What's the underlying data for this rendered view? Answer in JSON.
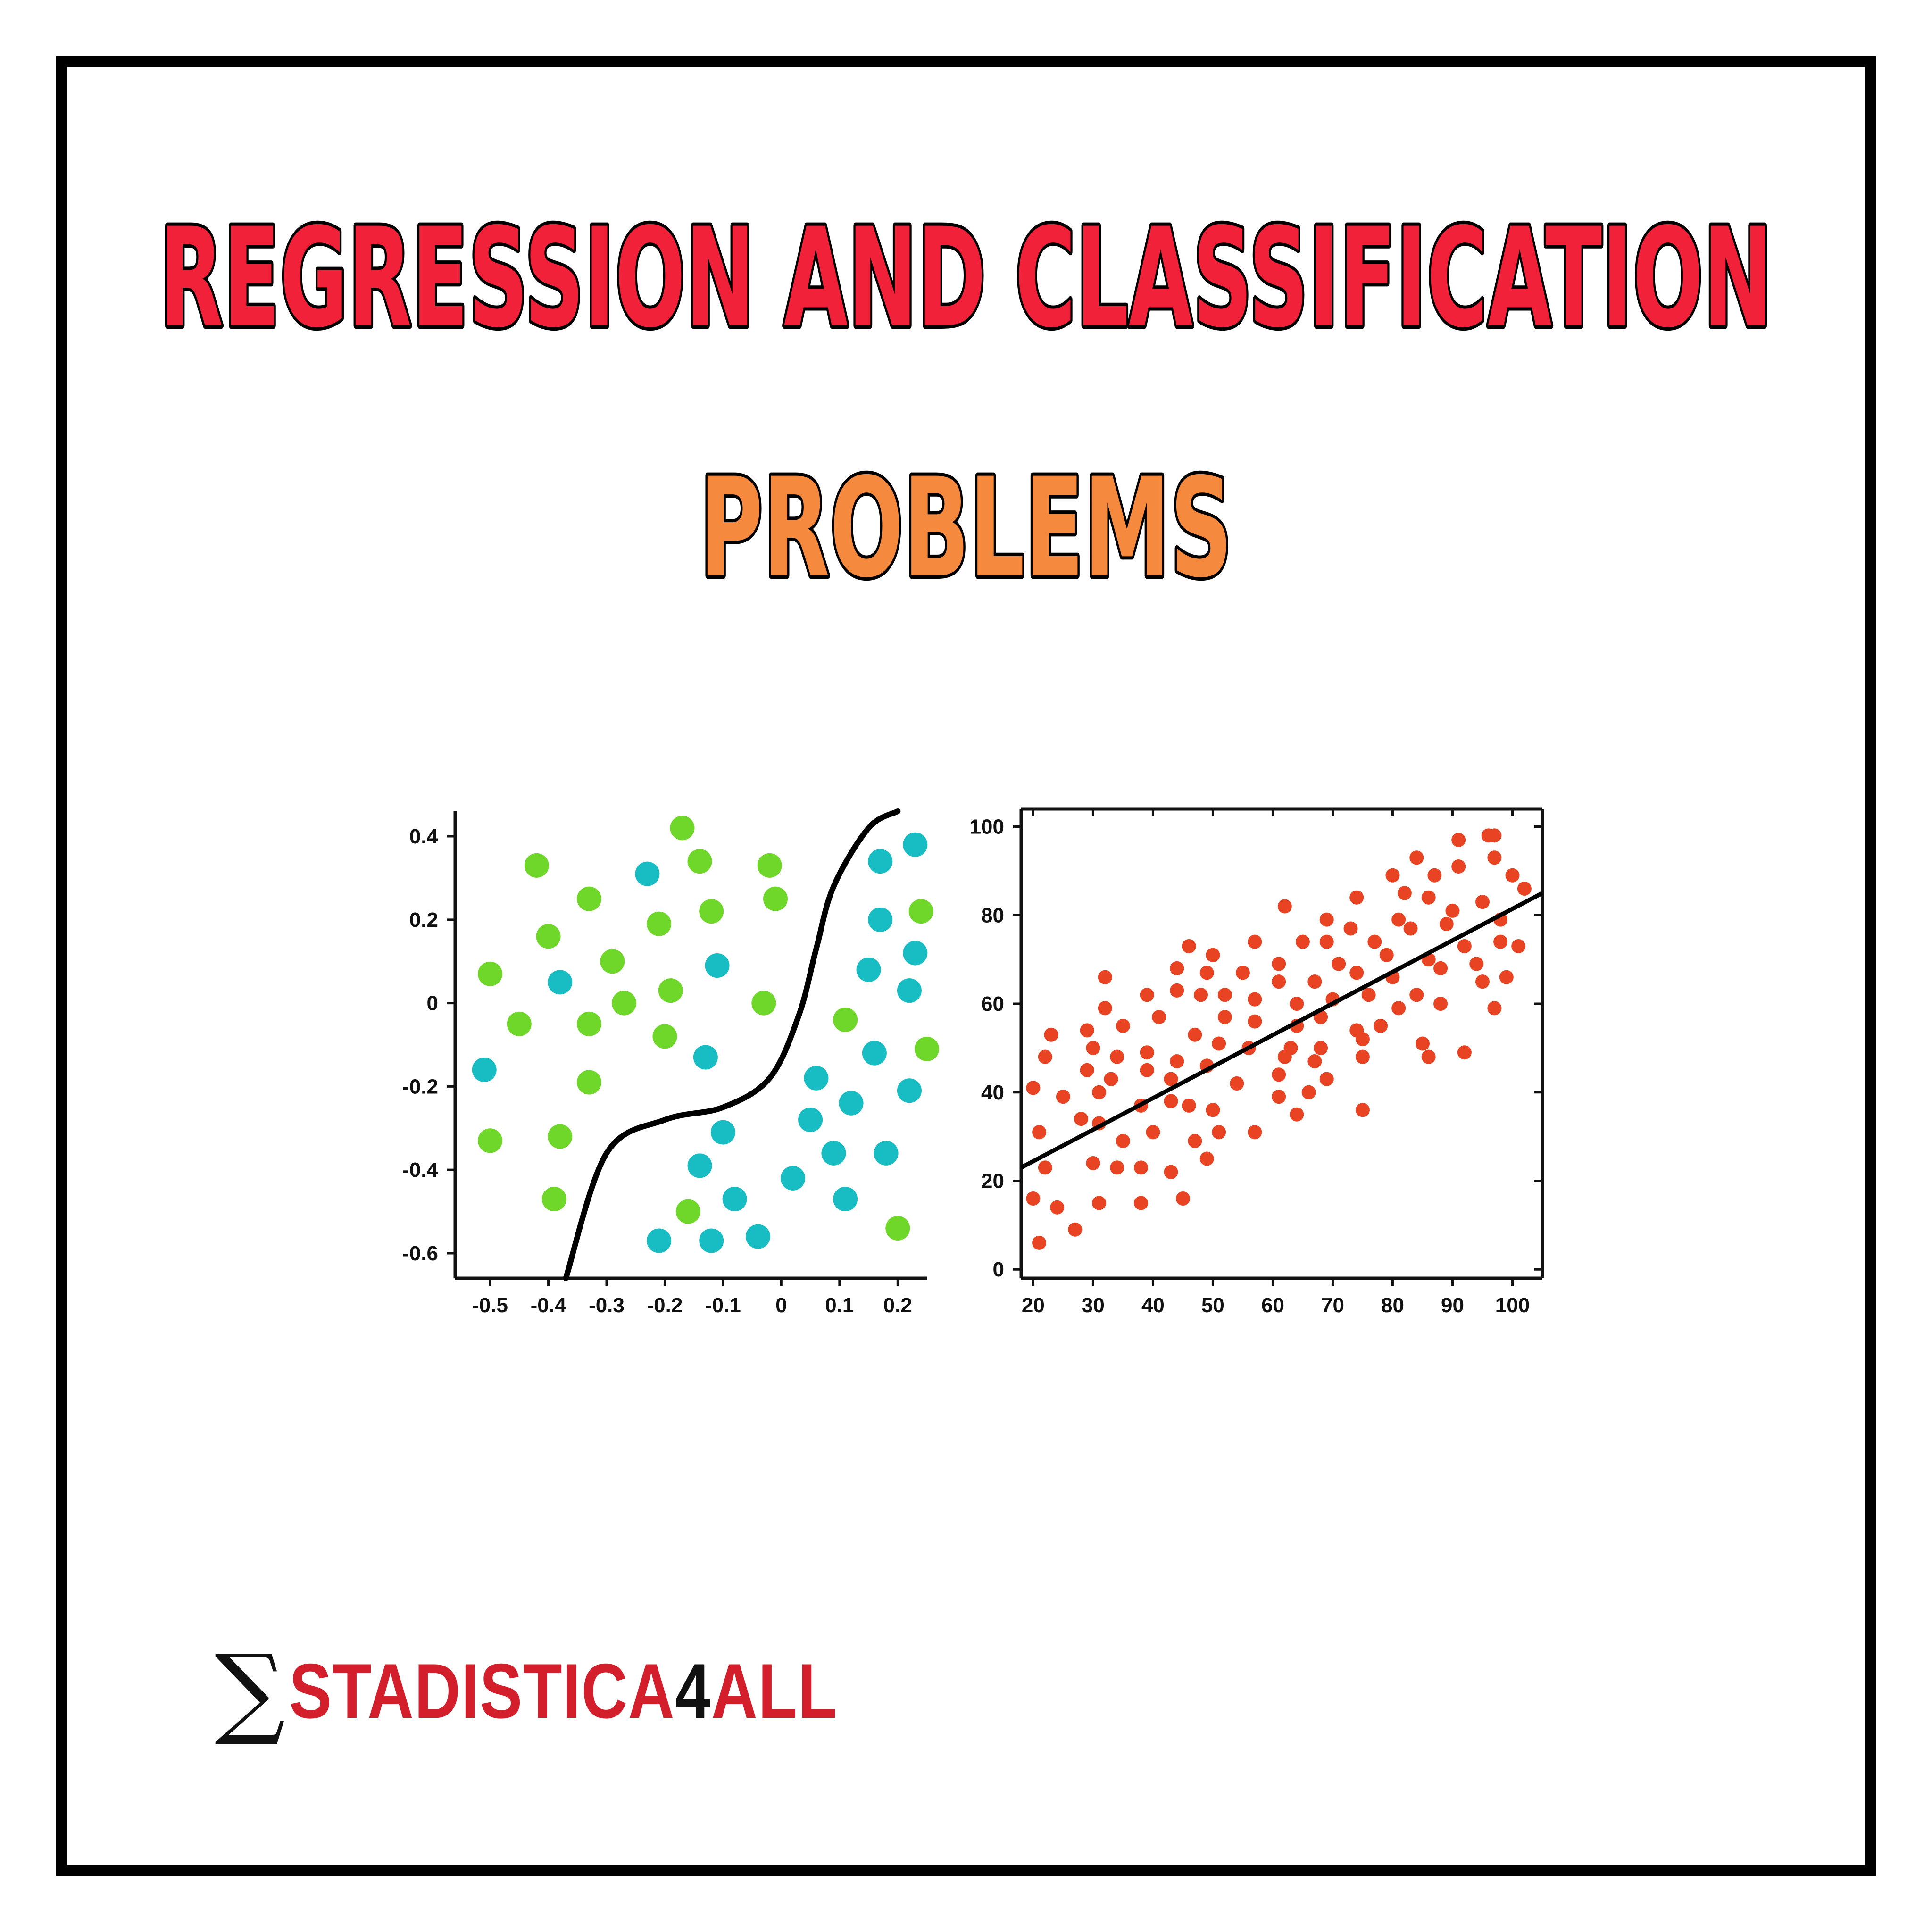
{
  "title": {
    "line1": "REGRESSION AND CLASSIFICATION",
    "line2": "PROBLEMS",
    "line1_color": "#f2213a",
    "line2_color": "#f58a3e"
  },
  "logo": {
    "symbol": "∑",
    "text_before": "STADISTICA",
    "digit": "4",
    "text_after": "ALL",
    "color": "#d21f2b"
  },
  "chart_data": [
    {
      "type": "scatter",
      "subtype": "classification",
      "title": "",
      "xlabel": "",
      "ylabel": "",
      "xlim": [
        -0.56,
        0.25
      ],
      "ylim": [
        -0.66,
        0.46
      ],
      "xticks": [
        -0.5,
        -0.4,
        -0.3,
        -0.2,
        -0.1,
        0,
        0.1,
        0.2
      ],
      "xtick_labels": [
        "-0.5",
        "-0.4",
        "-0.3",
        "-0.2",
        "-0.1",
        "0",
        "0.1",
        "0.2"
      ],
      "yticks": [
        0.4,
        0.2,
        0,
        -0.2,
        -0.4,
        -0.6
      ],
      "ytick_labels": [
        "0.4",
        "0.2",
        "0",
        "-0.2",
        "-0.4",
        "-0.6"
      ],
      "grid": false,
      "series": [
        {
          "color": "#6fd62a",
          "points": [
            [
              -0.42,
              0.33
            ],
            [
              -0.33,
              0.25
            ],
            [
              -0.4,
              0.16
            ],
            [
              -0.29,
              0.1
            ],
            [
              -0.21,
              0.19
            ],
            [
              -0.5,
              0.07
            ],
            [
              -0.45,
              -0.05
            ],
            [
              -0.33,
              -0.05
            ],
            [
              -0.27,
              0.0
            ],
            [
              -0.19,
              0.03
            ],
            [
              -0.2,
              -0.08
            ],
            [
              -0.17,
              0.42
            ],
            [
              -0.14,
              0.34
            ],
            [
              -0.02,
              0.33
            ],
            [
              -0.12,
              0.22
            ],
            [
              -0.01,
              0.25
            ],
            [
              -0.03,
              0.0
            ],
            [
              -0.33,
              -0.19
            ],
            [
              -0.38,
              -0.32
            ],
            [
              -0.5,
              -0.33
            ],
            [
              -0.39,
              -0.47
            ],
            [
              -0.16,
              -0.5
            ],
            [
              0.11,
              -0.04
            ],
            [
              0.24,
              0.22
            ],
            [
              0.25,
              -0.11
            ],
            [
              0.2,
              -0.54
            ]
          ]
        },
        {
          "color": "#17bdc3",
          "points": [
            [
              -0.23,
              0.31
            ],
            [
              -0.38,
              0.05
            ],
            [
              -0.11,
              0.09
            ],
            [
              -0.51,
              -0.16
            ],
            [
              -0.13,
              -0.13
            ],
            [
              0.17,
              0.34
            ],
            [
              0.23,
              0.38
            ],
            [
              0.17,
              0.2
            ],
            [
              0.15,
              0.08
            ],
            [
              0.23,
              0.12
            ],
            [
              0.22,
              0.03
            ],
            [
              0.16,
              -0.12
            ],
            [
              0.22,
              -0.21
            ],
            [
              0.06,
              -0.18
            ],
            [
              0.12,
              -0.24
            ],
            [
              0.05,
              -0.28
            ],
            [
              -0.1,
              -0.31
            ],
            [
              -0.14,
              -0.39
            ],
            [
              0.09,
              -0.36
            ],
            [
              0.18,
              -0.36
            ],
            [
              0.02,
              -0.42
            ],
            [
              -0.08,
              -0.47
            ],
            [
              0.11,
              -0.47
            ],
            [
              -0.21,
              -0.57
            ],
            [
              -0.12,
              -0.57
            ],
            [
              -0.04,
              -0.56
            ]
          ]
        }
      ],
      "boundary": {
        "color": "#000000",
        "points": [
          [
            -0.37,
            -0.66
          ],
          [
            -0.3,
            -0.36
          ],
          [
            -0.2,
            -0.28
          ],
          [
            -0.1,
            -0.25
          ],
          [
            -0.02,
            -0.18
          ],
          [
            0.03,
            -0.03
          ],
          [
            0.06,
            0.13
          ],
          [
            0.09,
            0.28
          ],
          [
            0.15,
            0.42
          ],
          [
            0.2,
            0.46
          ]
        ]
      }
    },
    {
      "type": "scatter",
      "subtype": "regression",
      "title": "",
      "xlabel": "",
      "ylabel": "",
      "xlim": [
        18,
        105
      ],
      "ylim": [
        -2,
        104
      ],
      "xticks": [
        20,
        30,
        40,
        50,
        60,
        70,
        80,
        90,
        100
      ],
      "xtick_labels": [
        "20",
        "30",
        "40",
        "50",
        "60",
        "70",
        "80",
        "90",
        "100"
      ],
      "yticks": [
        0,
        20,
        40,
        60,
        80,
        100
      ],
      "ytick_labels": [
        "0",
        "20",
        "40",
        "60",
        "80",
        "100"
      ],
      "grid": false,
      "series": [
        {
          "color": "#e84424",
          "points": [
            [
              21,
              6
            ],
            [
              20,
              16
            ],
            [
              22,
              23
            ],
            [
              21,
              31
            ],
            [
              20,
              41
            ],
            [
              22,
              48
            ],
            [
              23,
              53
            ],
            [
              24,
              14
            ],
            [
              27,
              9
            ],
            [
              25,
              39
            ],
            [
              28,
              34
            ],
            [
              29,
              45
            ],
            [
              29,
              54
            ],
            [
              30,
              50
            ],
            [
              31,
              40
            ],
            [
              31,
              33
            ],
            [
              30,
              24
            ],
            [
              31,
              15
            ],
            [
              32,
              59
            ],
            [
              32,
              66
            ],
            [
              33,
              43
            ],
            [
              34,
              48
            ],
            [
              34,
              23
            ],
            [
              35,
              29
            ],
            [
              35,
              55
            ],
            [
              38,
              15
            ],
            [
              38,
              23
            ],
            [
              38,
              37
            ],
            [
              39,
              45
            ],
            [
              39,
              49
            ],
            [
              39,
              62
            ],
            [
              40,
              31
            ],
            [
              41,
              57
            ],
            [
              43,
              22
            ],
            [
              43,
              38
            ],
            [
              43,
              43
            ],
            [
              44,
              47
            ],
            [
              44,
              63
            ],
            [
              44,
              68
            ],
            [
              45,
              16
            ],
            [
              46,
              37
            ],
            [
              47,
              53
            ],
            [
              46,
              73
            ],
            [
              47,
              29
            ],
            [
              48,
              62
            ],
            [
              49,
              67
            ],
            [
              49,
              46
            ],
            [
              49,
              25
            ],
            [
              50,
              36
            ],
            [
              50,
              71
            ],
            [
              51,
              31
            ],
            [
              51,
              51
            ],
            [
              52,
              57
            ],
            [
              52,
              62
            ],
            [
              54,
              42
            ],
            [
              55,
              67
            ],
            [
              56,
              50
            ],
            [
              57,
              31
            ],
            [
              57,
              56
            ],
            [
              57,
              61
            ],
            [
              57,
              74
            ],
            [
              61,
              39
            ],
            [
              61,
              44
            ],
            [
              61,
              65
            ],
            [
              61,
              69
            ],
            [
              62,
              82
            ],
            [
              62,
              48
            ],
            [
              63,
              50
            ],
            [
              64,
              35
            ],
            [
              64,
              55
            ],
            [
              64,
              60
            ],
            [
              65,
              74
            ],
            [
              66,
              40
            ],
            [
              67,
              47
            ],
            [
              67,
              65
            ],
            [
              68,
              50
            ],
            [
              68,
              57
            ],
            [
              69,
              43
            ],
            [
              69,
              74
            ],
            [
              69,
              79
            ],
            [
              70,
              61
            ],
            [
              71,
              69
            ],
            [
              73,
              77
            ],
            [
              74,
              54
            ],
            [
              74,
              67
            ],
            [
              74,
              84
            ],
            [
              75,
              36
            ],
            [
              75,
              48
            ],
            [
              75,
              52
            ],
            [
              76,
              62
            ],
            [
              77,
              74
            ],
            [
              78,
              55
            ],
            [
              79,
              71
            ],
            [
              80,
              66
            ],
            [
              80,
              89
            ],
            [
              81,
              59
            ],
            [
              81,
              79
            ],
            [
              82,
              85
            ],
            [
              83,
              77
            ],
            [
              84,
              93
            ],
            [
              84,
              62
            ],
            [
              85,
              51
            ],
            [
              86,
              48
            ],
            [
              86,
              70
            ],
            [
              86,
              84
            ],
            [
              87,
              89
            ],
            [
              88,
              60
            ],
            [
              88,
              68
            ],
            [
              89,
              78
            ],
            [
              90,
              81
            ],
            [
              91,
              91
            ],
            [
              91,
              97
            ],
            [
              92,
              49
            ],
            [
              92,
              73
            ],
            [
              94,
              69
            ],
            [
              95,
              65
            ],
            [
              95,
              83
            ],
            [
              96,
              98
            ],
            [
              97,
              93
            ],
            [
              97,
              98
            ],
            [
              97,
              59
            ],
            [
              98,
              74
            ],
            [
              98,
              79
            ],
            [
              99,
              66
            ],
            [
              100,
              89
            ],
            [
              101,
              73
            ],
            [
              102,
              86
            ]
          ]
        }
      ],
      "trend_line": {
        "color": "#000000",
        "points": [
          [
            18,
            23
          ],
          [
            105,
            85
          ]
        ]
      }
    }
  ]
}
